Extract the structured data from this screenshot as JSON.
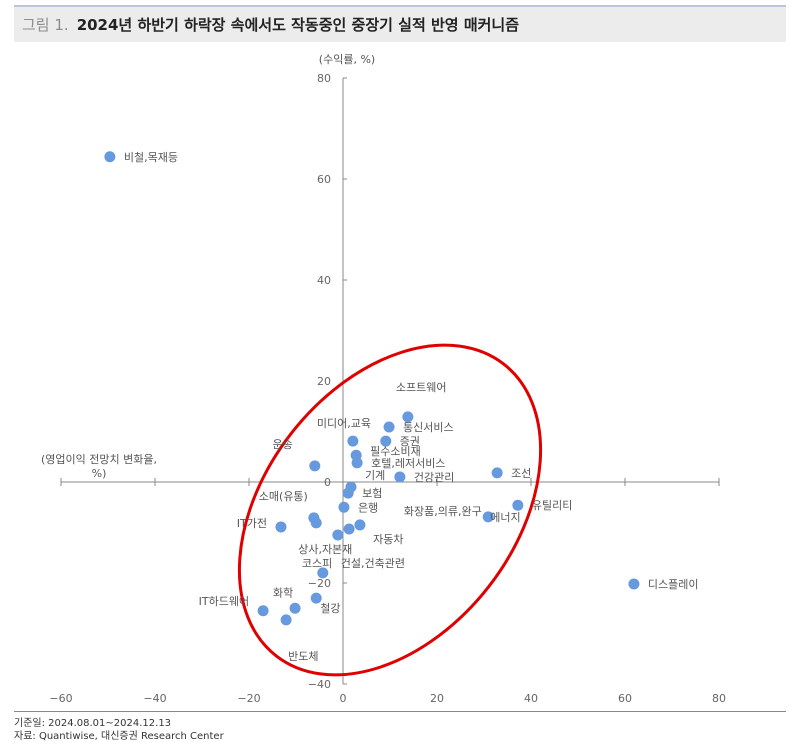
{
  "header": {
    "figure_prefix": "그림 1.",
    "title": "2024년 하반기 하락장 속에서도 작동중인 중장기 실적 반영 매커니즘"
  },
  "footer": {
    "date_note": "기준일: 2024.08.01~2024.12.13",
    "source_note": "자료: Quantiwise, 대신증권 Research Center"
  },
  "colors": {
    "point": "#6699dd",
    "ellipse": "#e00000",
    "axis": "#888888"
  },
  "chart_data": {
    "type": "scatter",
    "title": "2024년 하반기 하락장 속에서도 작동중인 중장기 실적 반영 매커니즘",
    "xlabel": "(영업이익 전망치 변화율, %)",
    "ylabel": "(수익률, %)",
    "xlim": [
      -60,
      80
    ],
    "ylim": [
      -40,
      80
    ],
    "xticks": [
      -60,
      -40,
      -20,
      0,
      20,
      40,
      60,
      80
    ],
    "yticks": [
      -40,
      -20,
      0,
      20,
      40,
      60,
      80
    ],
    "grid": false,
    "legend": "none",
    "annotation": "red ellipse highlighting positive correlation cluster",
    "points": [
      {
        "label": "비철,목재등",
        "x": -49.6,
        "y": 64.4
      },
      {
        "label": "소프트웨어",
        "x": 13.8,
        "y": 12.9
      },
      {
        "label": "통신서비스",
        "x": 9.8,
        "y": 10.9
      },
      {
        "label": "미디어,교육",
        "x": 2.1,
        "y": 8.1
      },
      {
        "label": "증권",
        "x": 9.1,
        "y": 8.1
      },
      {
        "label": "필수소비재",
        "x": 2.8,
        "y": 5.3
      },
      {
        "label": "호텔,레저서비스",
        "x": 3.0,
        "y": 3.8
      },
      {
        "label": "운송",
        "x": -6.0,
        "y": 3.2
      },
      {
        "label": "건강관리",
        "x": 12.1,
        "y": 1.0
      },
      {
        "label": "조선",
        "x": 32.8,
        "y": 1.8
      },
      {
        "label": "기계",
        "x": 1.7,
        "y": -1.0
      },
      {
        "label": "보험",
        "x": 1.1,
        "y": -2.2
      },
      {
        "label": "은행",
        "x": 0.2,
        "y": -5.0
      },
      {
        "label": "소매(유통)",
        "x": -6.2,
        "y": -7.1
      },
      {
        "label": "상사,자본재",
        "x": -5.7,
        "y": -8.1
      },
      {
        "label": "IT가전",
        "x": -13.2,
        "y": -8.9
      },
      {
        "label": "화장품,의류,완구",
        "x": 3.6,
        "y": -8.5
      },
      {
        "label": "자동차",
        "x": 1.3,
        "y": -9.3
      },
      {
        "label": "코스피",
        "x": -1.1,
        "y": -10.5
      },
      {
        "label": "유틸리티",
        "x": 37.2,
        "y": -4.6
      },
      {
        "label": "에너지",
        "x": 30.9,
        "y": -6.9
      },
      {
        "label": "건설,건축관련",
        "x": -4.3,
        "y": -18.0
      },
      {
        "label": "디스플레이",
        "x": 61.9,
        "y": -20.2
      },
      {
        "label": "철강",
        "x": -5.7,
        "y": -23.0
      },
      {
        "label": "화학",
        "x": -10.2,
        "y": -25.0
      },
      {
        "label": "IT하드웨어",
        "x": -17.0,
        "y": -25.5
      },
      {
        "label": "반도체",
        "x": -12.1,
        "y": -27.3
      }
    ]
  }
}
